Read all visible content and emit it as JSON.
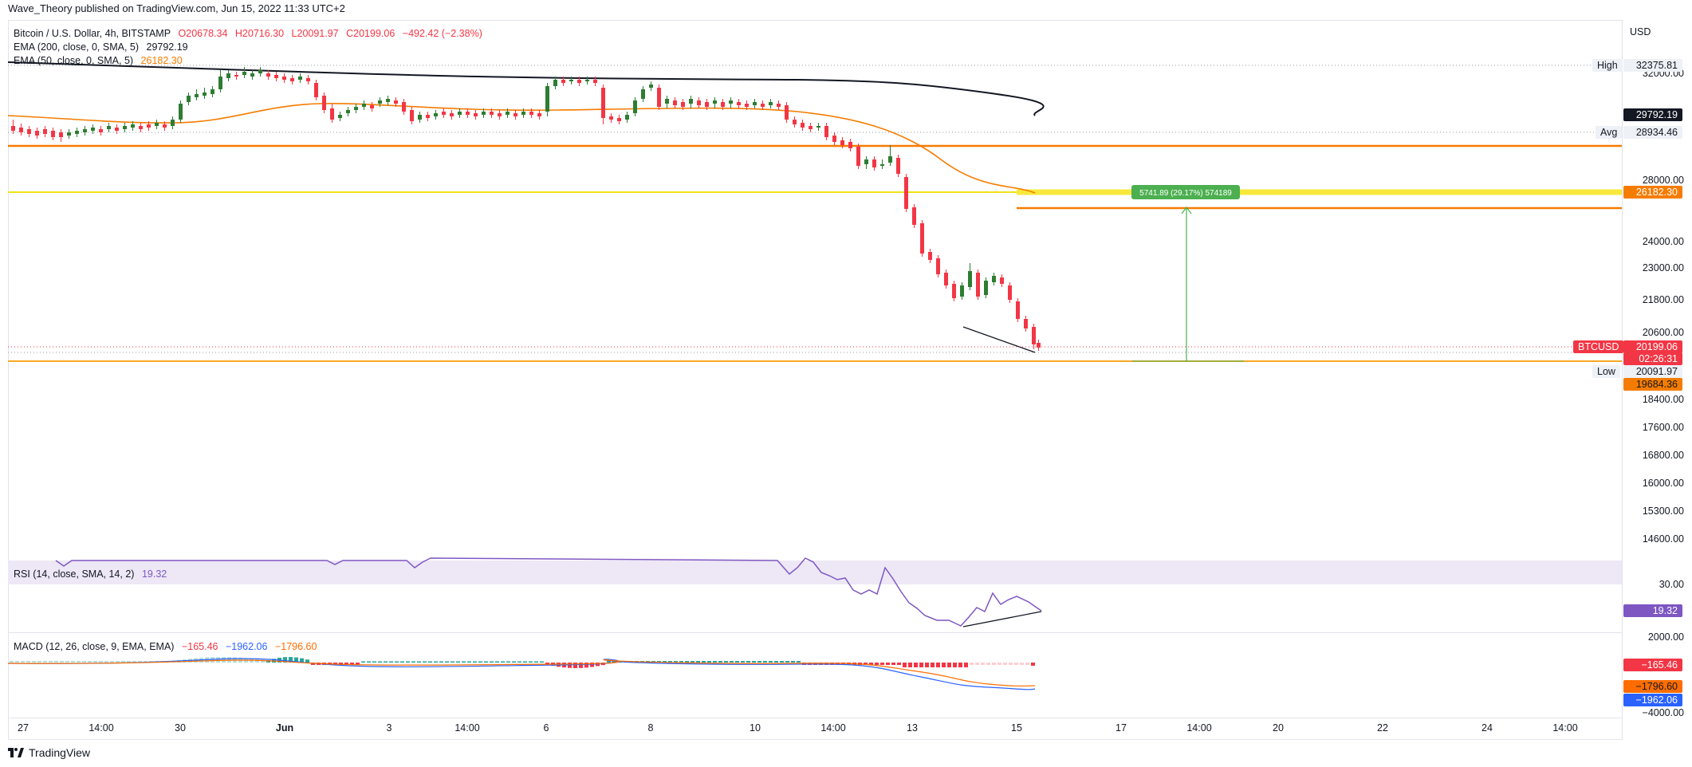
{
  "header": {
    "published_by": "Wave_Theory published on TradingView.com, Jun 15, 2022 11:33 UTC+2"
  },
  "legend": {
    "symbol": "Bitcoin / U.S. Dollar, 4h, BITSTAMP",
    "open": "O20678.34",
    "high": "H20716.30",
    "low": "L20091.97",
    "close": "C20199.06",
    "change": "−492.42 (−2.38%)",
    "ema200_label": "EMA (200, close, 0, SMA, 5)",
    "ema200_value": "29792.19",
    "ema50_label": "EMA (50, close, 0, SMA, 5)",
    "ema50_value": "26182.30",
    "rsi_label": "RSI (14, close, SMA, 14, 2)",
    "rsi_value": "19.32",
    "macd_label": "MACD (12, 26, close, 9, EMA, EMA)",
    "macd_hist": "−165.46",
    "macd_line": "−1962.06",
    "macd_signal": "−1796.60"
  },
  "price_scale": {
    "currency": "USD",
    "ticks": [
      "32000.00",
      "28000.00",
      "24000.00",
      "23000.00",
      "21800.00",
      "20600.00",
      "18400.00",
      "17600.00",
      "16800.00",
      "16000.00",
      "15300.00",
      "14600.00"
    ],
    "high_label": "High",
    "high_value": "32375.81",
    "ema200_tag": "29792.19",
    "avg_label": "Avg",
    "avg_value": "28934.46",
    "ema50_tag": "26182.30",
    "symbol_tag": "BTCUSD",
    "last_price": "20199.06",
    "countdown": "02:26:31",
    "low_label": "Low",
    "low_value": "20091.97",
    "support_tag": "19684.36"
  },
  "rsi_scale": {
    "tick": "30.00",
    "value_tag": "19.32"
  },
  "macd_scale": {
    "tick_top": "2000.00",
    "tick_bottom": "−4000.00",
    "hist_tag": "−165.46",
    "signal_tag": "−1796.60",
    "macd_tag": "−1962.06"
  },
  "measure_label": "5741.89 (29.17%) 574189",
  "time_axis": [
    "27",
    "14:00",
    "30",
    "Jun",
    "3",
    "14:00",
    "6",
    "8",
    "10",
    "14:00",
    "13",
    "15",
    "17",
    "14:00",
    "20",
    "22",
    "24",
    "14:00"
  ],
  "footer": {
    "brand": "TradingView"
  },
  "colors": {
    "up": "#26a69a",
    "up_candle": "#2e7d32",
    "down": "#f23645",
    "ema200": "#131722",
    "ema50": "#f57c00",
    "support": "#f57c00",
    "resistance": "#ffeb3b",
    "rsi": "#7e57c2",
    "macd": "#2962ff",
    "signal": "#ff6d00"
  }
}
